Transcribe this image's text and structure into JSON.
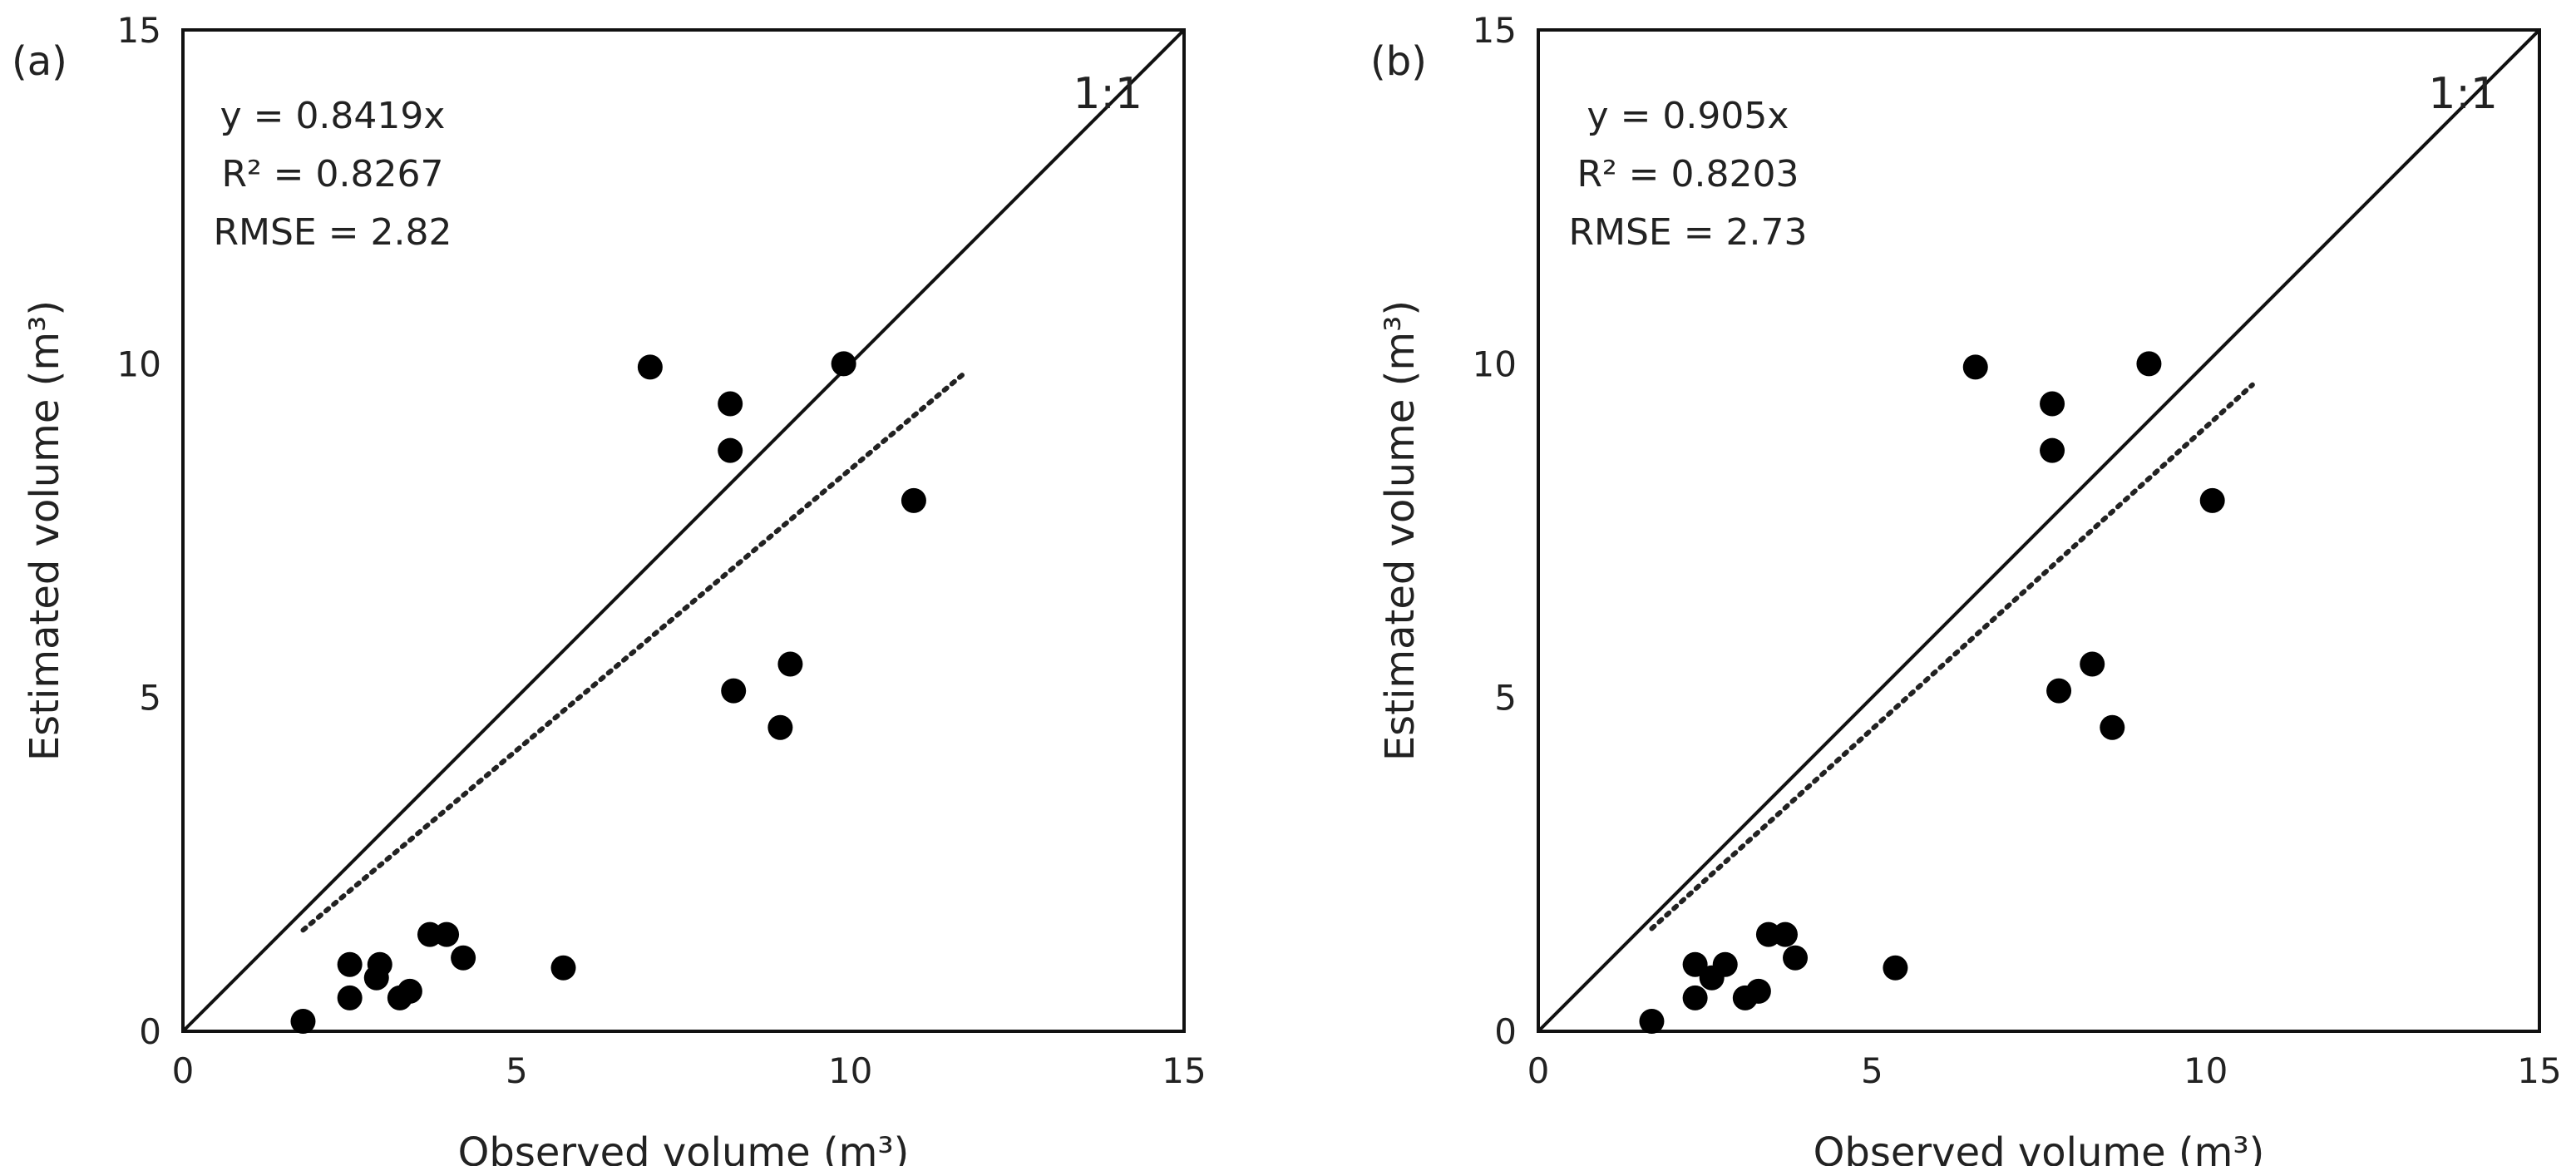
{
  "chart_data": [
    {
      "type": "scatter",
      "panel_label": "(a)",
      "xlabel": "Observed volume (m³)",
      "ylabel": "Estimated volume (m³)",
      "xlim": [
        0,
        15
      ],
      "ylim": [
        0,
        15
      ],
      "xticks": [
        "0",
        "5",
        "10",
        "15"
      ],
      "yticks": [
        "0",
        "5",
        "10",
        "15"
      ],
      "reference_line_label": "1:1",
      "annotations": {
        "equation": "y = 0.8419x",
        "r2": "R² = 0.8267",
        "rmse": "RMSE = 2.82"
      },
      "fit": {
        "slope": 0.8419,
        "x_range": [
          1.8,
          11.7
        ],
        "style": "dotted"
      },
      "points": [
        {
          "x": 1.8,
          "y": 0.15
        },
        {
          "x": 2.5,
          "y": 0.5
        },
        {
          "x": 2.5,
          "y": 1.0
        },
        {
          "x": 2.9,
          "y": 0.8
        },
        {
          "x": 2.95,
          "y": 1.0
        },
        {
          "x": 3.25,
          "y": 0.5
        },
        {
          "x": 3.4,
          "y": 0.6
        },
        {
          "x": 3.7,
          "y": 1.45
        },
        {
          "x": 3.95,
          "y": 1.45
        },
        {
          "x": 4.2,
          "y": 1.1
        },
        {
          "x": 5.7,
          "y": 0.95
        },
        {
          "x": 7.0,
          "y": 9.95
        },
        {
          "x": 8.2,
          "y": 9.4
        },
        {
          "x": 8.2,
          "y": 8.7
        },
        {
          "x": 8.25,
          "y": 5.1
        },
        {
          "x": 8.95,
          "y": 4.55
        },
        {
          "x": 9.1,
          "y": 5.5
        },
        {
          "x": 9.9,
          "y": 10.0
        },
        {
          "x": 10.95,
          "y": 7.95
        }
      ]
    },
    {
      "type": "scatter",
      "panel_label": "(b)",
      "xlabel": "Observed volume (m³)",
      "ylabel": "Estimated volume (m³)",
      "xlim": [
        0,
        15
      ],
      "ylim": [
        0,
        15
      ],
      "xticks": [
        "0",
        "5",
        "10",
        "15"
      ],
      "yticks": [
        "0",
        "5",
        "10",
        "15"
      ],
      "reference_line_label": "1:1",
      "annotations": {
        "equation": "y = 0.905x",
        "r2": "R² = 0.8203",
        "rmse": "RMSE = 2.73"
      },
      "fit": {
        "slope": 0.905,
        "x_range": [
          1.7,
          10.7
        ],
        "style": "dotted"
      },
      "points": [
        {
          "x": 1.7,
          "y": 0.15
        },
        {
          "x": 2.35,
          "y": 0.5
        },
        {
          "x": 2.35,
          "y": 1.0
        },
        {
          "x": 2.6,
          "y": 0.8
        },
        {
          "x": 2.8,
          "y": 1.0
        },
        {
          "x": 3.1,
          "y": 0.5
        },
        {
          "x": 3.3,
          "y": 0.6
        },
        {
          "x": 3.45,
          "y": 1.45
        },
        {
          "x": 3.7,
          "y": 1.45
        },
        {
          "x": 3.85,
          "y": 1.1
        },
        {
          "x": 5.35,
          "y": 0.95
        },
        {
          "x": 6.55,
          "y": 9.95
        },
        {
          "x": 7.7,
          "y": 9.4
        },
        {
          "x": 7.7,
          "y": 8.7
        },
        {
          "x": 7.8,
          "y": 5.1
        },
        {
          "x": 8.3,
          "y": 5.5
        },
        {
          "x": 8.6,
          "y": 4.55
        },
        {
          "x": 9.15,
          "y": 10.0
        },
        {
          "x": 10.1,
          "y": 7.95
        }
      ]
    }
  ]
}
